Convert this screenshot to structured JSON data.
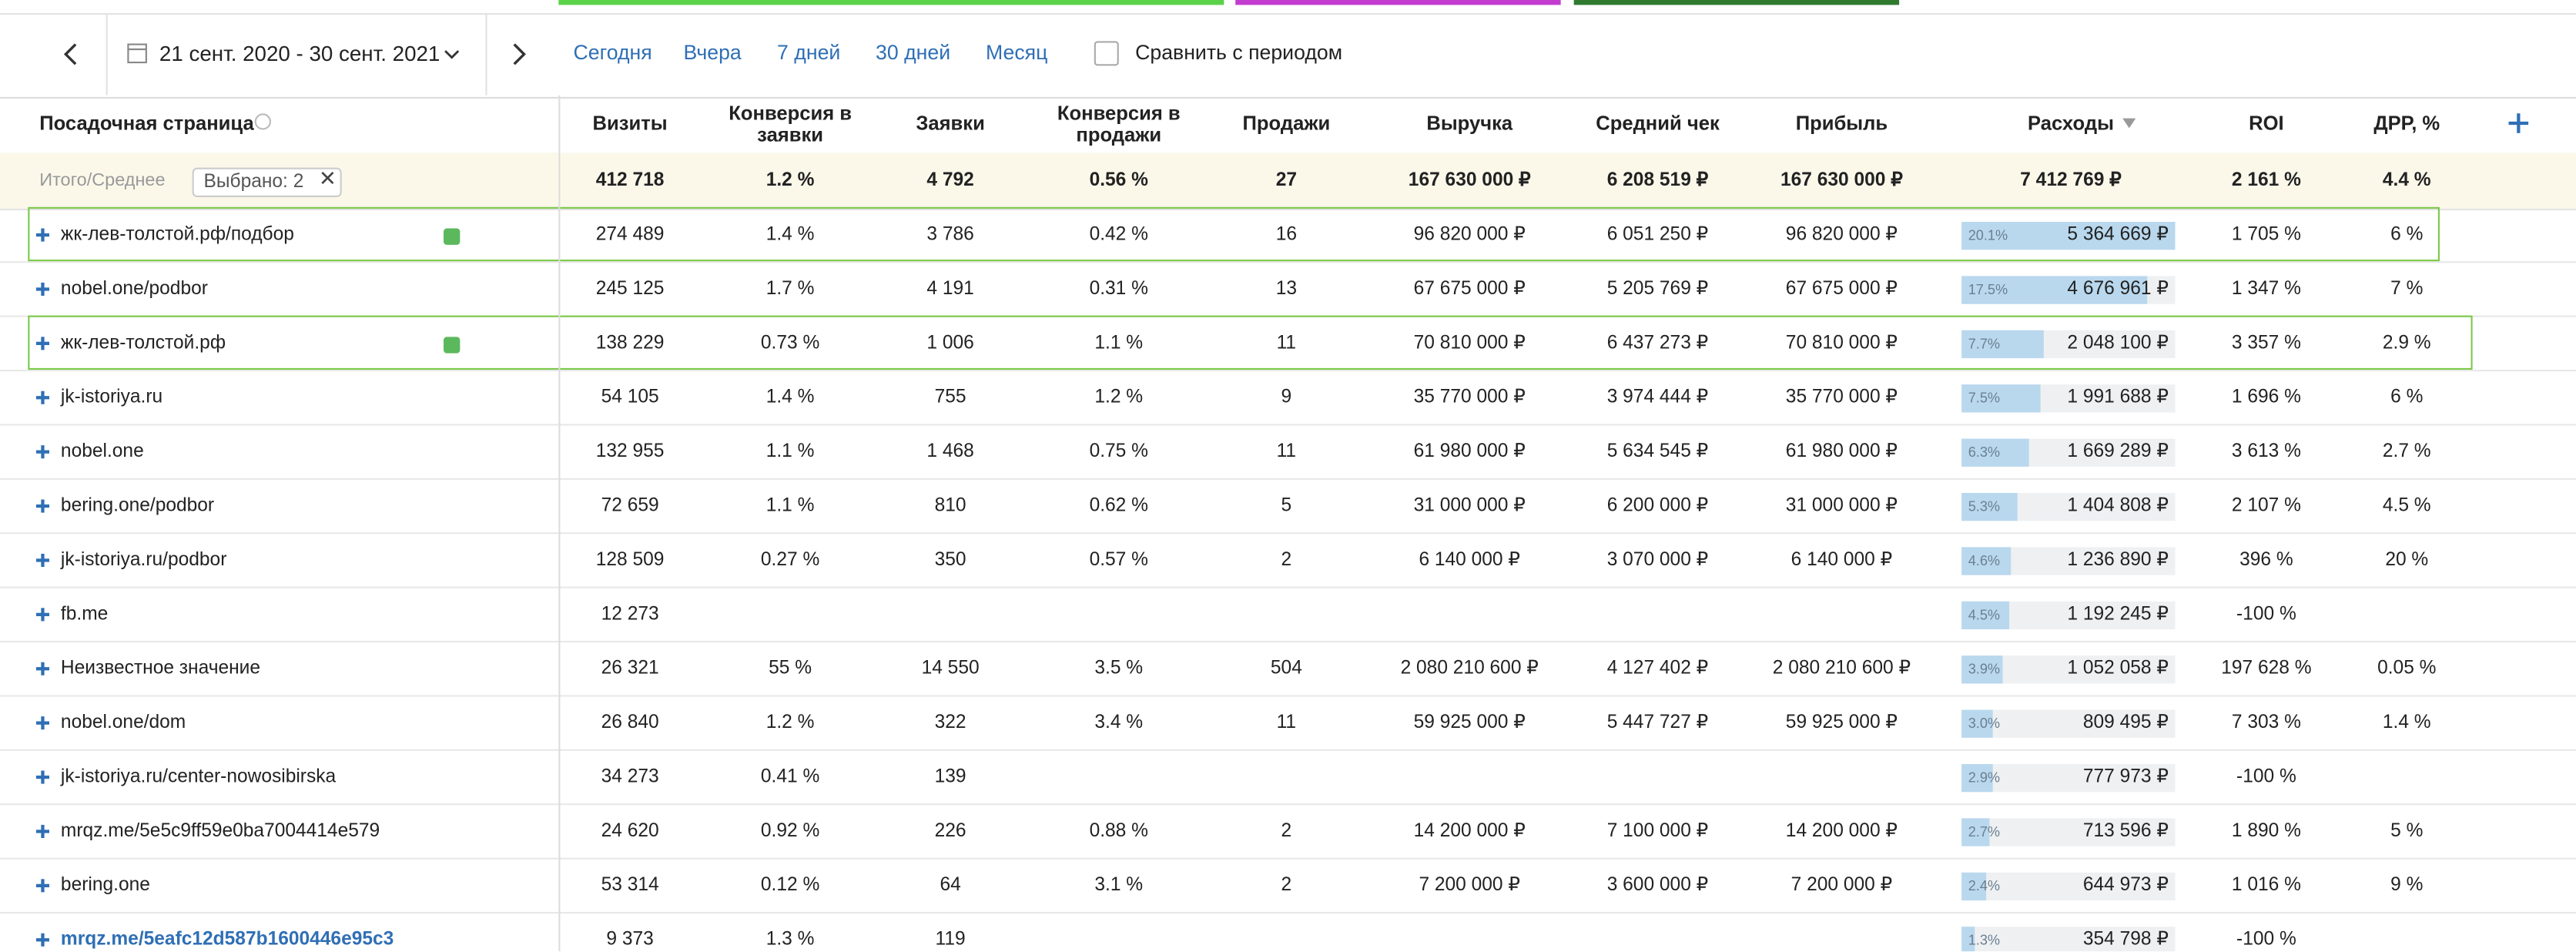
{
  "toolbar": {
    "date_range": "21 сент. 2020 - 30 сент. 2021",
    "quick_ranges": [
      "Сегодня",
      "Вчера",
      "7 дней",
      "30 дней",
      "Месяц"
    ],
    "compare_label": "Сравнить с периодом"
  },
  "table": {
    "columns": [
      "Посадочная страница",
      "Визиты",
      "Конверсия в заявки",
      "Заявки",
      "Конверсия в продажи",
      "Продажи",
      "Выручка",
      "Средний чек",
      "Прибыль",
      "Расходы",
      "ROI",
      "ДРР, %"
    ],
    "total": {
      "label": "Итого/Среднее",
      "selected": "Выбрано: 2",
      "cells": [
        "412 718",
        "1.2 %",
        "4 792",
        "0.56 %",
        "27",
        "167 630 000 ₽",
        "6 208 519 ₽",
        "167 630 000 ₽",
        "7 412 769 ₽",
        "2 161 %",
        "4.4 %"
      ]
    },
    "rows": [
      {
        "name": "жк-лев-толстой.рф/подбор",
        "selected": true,
        "cells": [
          "274 489",
          "1.4 %",
          "3 786",
          "0.42 %",
          "16",
          "96 820 000 ₽",
          "6 051 250 ₽",
          "96 820 000 ₽",
          {
            "share": 20.1,
            "share_label": "20.1%",
            "value": "5 364 669 ₽"
          },
          "1 705 %",
          "6 %"
        ]
      },
      {
        "name": "nobel.one/podbor",
        "selected": false,
        "cells": [
          "245 125",
          "1.7 %",
          "4 191",
          "0.31 %",
          "13",
          "67 675 000 ₽",
          "5 205 769 ₽",
          "67 675 000 ₽",
          {
            "share": 17.5,
            "share_label": "17.5%",
            "value": "4 676 961 ₽"
          },
          "1 347 %",
          "7 %"
        ]
      },
      {
        "name": "жк-лев-толстой.рф",
        "selected": true,
        "cells": [
          "138 229",
          "0.73 %",
          "1 006",
          "1.1 %",
          "11",
          "70 810 000 ₽",
          "6 437 273 ₽",
          "70 810 000 ₽",
          {
            "share": 7.7,
            "share_label": "7.7%",
            "value": "2 048 100 ₽"
          },
          "3 357 %",
          "2.9 %"
        ]
      },
      {
        "name": "jk-istoriya.ru",
        "selected": false,
        "cells": [
          "54 105",
          "1.4 %",
          "755",
          "1.2 %",
          "9",
          "35 770 000 ₽",
          "3 974 444 ₽",
          "35 770 000 ₽",
          {
            "share": 7.5,
            "share_label": "7.5%",
            "value": "1 991 688 ₽"
          },
          "1 696 %",
          "6 %"
        ]
      },
      {
        "name": "nobel.one",
        "selected": false,
        "cells": [
          "132 955",
          "1.1 %",
          "1 468",
          "0.75 %",
          "11",
          "61 980 000 ₽",
          "5 634 545 ₽",
          "61 980 000 ₽",
          {
            "share": 6.3,
            "share_label": "6.3%",
            "value": "1 669 289 ₽"
          },
          "3 613 %",
          "2.7 %"
        ]
      },
      {
        "name": "bering.one/podbor",
        "selected": false,
        "cells": [
          "72 659",
          "1.1 %",
          "810",
          "0.62 %",
          "5",
          "31 000 000 ₽",
          "6 200 000 ₽",
          "31 000 000 ₽",
          {
            "share": 5.3,
            "share_label": "5.3%",
            "value": "1 404 808 ₽"
          },
          "2 107 %",
          "4.5 %"
        ]
      },
      {
        "name": "jk-istoriya.ru/podbor",
        "selected": false,
        "cells": [
          "128 509",
          "0.27 %",
          "350",
          "0.57 %",
          "2",
          "6 140 000 ₽",
          "3 070 000 ₽",
          "6 140 000 ₽",
          {
            "share": 4.6,
            "share_label": "4.6%",
            "value": "1 236 890 ₽"
          },
          "396 %",
          "20 %"
        ]
      },
      {
        "name": "fb.me",
        "selected": false,
        "cells": [
          "12 273",
          null,
          null,
          null,
          null,
          null,
          null,
          null,
          {
            "share": 4.5,
            "share_label": "4.5%",
            "value": "1 192 245 ₽"
          },
          "-100 %",
          null
        ]
      },
      {
        "name": "Неизвестное значение",
        "selected": false,
        "cells": [
          "26 321",
          "55 %",
          "14 550",
          "3.5 %",
          "504",
          "2 080 210 600 ₽",
          "4 127 402 ₽",
          "2 080 210 600 ₽",
          {
            "share": 3.9,
            "share_label": "3.9%",
            "value": "1 052 058 ₽"
          },
          "197 628 %",
          "0.05 %"
        ]
      },
      {
        "name": "nobel.one/dom",
        "selected": false,
        "cells": [
          "26 840",
          "1.2 %",
          "322",
          "3.4 %",
          "11",
          "59 925 000 ₽",
          "5 447 727 ₽",
          "59 925 000 ₽",
          {
            "share": 3.0,
            "share_label": "3.0%",
            "value": "809 495 ₽"
          },
          "7 303 %",
          "1.4 %"
        ]
      },
      {
        "name": "jk-istoriya.ru/center-nowosibirska",
        "selected": false,
        "cells": [
          "34 273",
          "0.41 %",
          "139",
          null,
          null,
          null,
          null,
          null,
          {
            "share": 2.9,
            "share_label": "2.9%",
            "value": "777 973 ₽"
          },
          "-100 %",
          null
        ]
      },
      {
        "name": "mrqz.me/5e5c9ff59e0ba7004414e579",
        "selected": false,
        "cells": [
          "24 620",
          "0.92 %",
          "226",
          "0.88 %",
          "2",
          "14 200 000 ₽",
          "7 100 000 ₽",
          "14 200 000 ₽",
          {
            "share": 2.7,
            "share_label": "2.7%",
            "value": "713 596 ₽"
          },
          "1 890 %",
          "5 %"
        ]
      },
      {
        "name": "bering.one",
        "selected": false,
        "cells": [
          "53 314",
          "0.12 %",
          "64",
          "3.1 %",
          "2",
          "7 200 000 ₽",
          "3 600 000 ₽",
          "7 200 000 ₽",
          {
            "share": 2.4,
            "share_label": "2.4%",
            "value": "644 973 ₽"
          },
          "1 016 %",
          "9 %"
        ]
      },
      {
        "name": "mrqz.me/5eafc12d587b1600446e95c3",
        "selected": false,
        "cells": [
          "9 373",
          "1.3 %",
          "119",
          null,
          null,
          null,
          null,
          null,
          {
            "share": 1.3,
            "share_label": "1.3%",
            "value": "354 798 ₽"
          },
          "-100 %",
          null
        ]
      }
    ]
  }
}
